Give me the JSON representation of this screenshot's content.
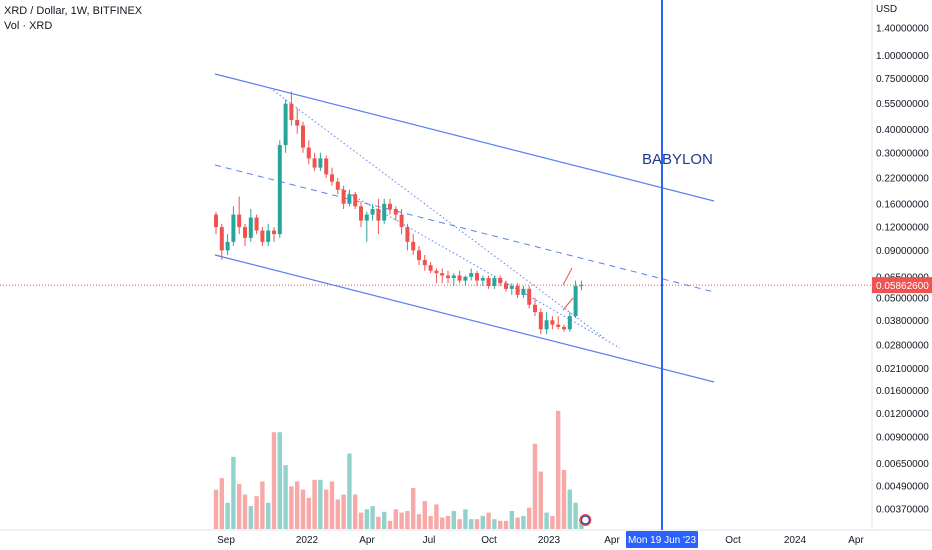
{
  "header": {
    "title": "XRD / Dollar, 1W, BITFINEX",
    "volume_label": "Vol · XRD"
  },
  "chart_data": {
    "type": "candlestick",
    "symbol": "XRD / Dollar",
    "interval": "1W",
    "exchange": "BITFINEX",
    "y_unit": "USD",
    "y_scale": "log",
    "ylim": [
      0.003,
      1.6
    ],
    "y_ticks": [
      "1.40000000",
      "1.00000000",
      "0.75000000",
      "0.55000000",
      "0.40000000",
      "0.30000000",
      "0.22000000",
      "0.16000000",
      "0.12000000",
      "0.09000000",
      "0.06500000",
      "0.05000000",
      "0.03800000",
      "0.02800000",
      "0.02100000",
      "0.01600000",
      "0.01200000",
      "0.00900000",
      "0.00650000",
      "0.00490000",
      "0.00370000"
    ],
    "x_ticks": [
      "Sep",
      "2022",
      "Apr",
      "Jul",
      "Oct",
      "2023",
      "Apr",
      "Oct",
      "2024",
      "Apr"
    ],
    "last_price": "0.05862600",
    "crosshair_date": "Mon 19 Jun '23",
    "annotation": "BABYLON",
    "candles_ohlc": [
      [
        0.14,
        0.145,
        0.11,
        0.12
      ],
      [
        0.12,
        0.125,
        0.08,
        0.09
      ],
      [
        0.09,
        0.11,
        0.085,
        0.1
      ],
      [
        0.1,
        0.155,
        0.095,
        0.14
      ],
      [
        0.14,
        0.175,
        0.11,
        0.12
      ],
      [
        0.12,
        0.125,
        0.095,
        0.105
      ],
      [
        0.105,
        0.15,
        0.1,
        0.135
      ],
      [
        0.135,
        0.14,
        0.11,
        0.115
      ],
      [
        0.115,
        0.12,
        0.095,
        0.1
      ],
      [
        0.1,
        0.125,
        0.095,
        0.115
      ],
      [
        0.115,
        0.12,
        0.1,
        0.11
      ],
      [
        0.11,
        0.35,
        0.105,
        0.33
      ],
      [
        0.33,
        0.58,
        0.3,
        0.55
      ],
      [
        0.55,
        0.64,
        0.42,
        0.45
      ],
      [
        0.45,
        0.52,
        0.38,
        0.42
      ],
      [
        0.42,
        0.44,
        0.3,
        0.32
      ],
      [
        0.32,
        0.35,
        0.26,
        0.28
      ],
      [
        0.28,
        0.3,
        0.24,
        0.25
      ],
      [
        0.25,
        0.3,
        0.24,
        0.28
      ],
      [
        0.28,
        0.29,
        0.22,
        0.23
      ],
      [
        0.23,
        0.25,
        0.2,
        0.21
      ],
      [
        0.21,
        0.22,
        0.18,
        0.19
      ],
      [
        0.19,
        0.2,
        0.15,
        0.16
      ],
      [
        0.16,
        0.19,
        0.155,
        0.18
      ],
      [
        0.18,
        0.185,
        0.15,
        0.155
      ],
      [
        0.155,
        0.165,
        0.12,
        0.13
      ],
      [
        0.13,
        0.145,
        0.1,
        0.14
      ],
      [
        0.14,
        0.16,
        0.13,
        0.15
      ],
      [
        0.15,
        0.17,
        0.11,
        0.13
      ],
      [
        0.13,
        0.17,
        0.125,
        0.16
      ],
      [
        0.16,
        0.17,
        0.14,
        0.15
      ],
      [
        0.15,
        0.155,
        0.13,
        0.14
      ],
      [
        0.14,
        0.15,
        0.11,
        0.12
      ],
      [
        0.12,
        0.125,
        0.09,
        0.1
      ],
      [
        0.1,
        0.11,
        0.085,
        0.09
      ],
      [
        0.09,
        0.095,
        0.075,
        0.08
      ],
      [
        0.08,
        0.085,
        0.07,
        0.075
      ],
      [
        0.075,
        0.078,
        0.068,
        0.07
      ],
      [
        0.07,
        0.072,
        0.06,
        0.068
      ],
      [
        0.068,
        0.072,
        0.06,
        0.066
      ],
      [
        0.066,
        0.07,
        0.06,
        0.064
      ],
      [
        0.064,
        0.068,
        0.058,
        0.066
      ],
      [
        0.066,
        0.07,
        0.06,
        0.062
      ],
      [
        0.062,
        0.066,
        0.058,
        0.065
      ],
      [
        0.065,
        0.072,
        0.062,
        0.068
      ],
      [
        0.068,
        0.07,
        0.058,
        0.062
      ],
      [
        0.062,
        0.066,
        0.058,
        0.064
      ],
      [
        0.064,
        0.066,
        0.056,
        0.058
      ],
      [
        0.058,
        0.066,
        0.056,
        0.064
      ],
      [
        0.064,
        0.066,
        0.058,
        0.06
      ],
      [
        0.06,
        0.062,
        0.054,
        0.056
      ],
      [
        0.056,
        0.06,
        0.052,
        0.058
      ],
      [
        0.058,
        0.06,
        0.05,
        0.052
      ],
      [
        0.052,
        0.058,
        0.05,
        0.056
      ],
      [
        0.056,
        0.058,
        0.044,
        0.046
      ],
      [
        0.046,
        0.05,
        0.04,
        0.042
      ],
      [
        0.042,
        0.044,
        0.032,
        0.034
      ],
      [
        0.034,
        0.042,
        0.032,
        0.038
      ],
      [
        0.038,
        0.04,
        0.034,
        0.036
      ],
      [
        0.036,
        0.04,
        0.034,
        0.035
      ],
      [
        0.035,
        0.036,
        0.033,
        0.034
      ],
      [
        0.034,
        0.042,
        0.033,
        0.04
      ],
      [
        0.04,
        0.062,
        0.039,
        0.058
      ],
      [
        0.058,
        0.062,
        0.055,
        0.0586
      ]
    ],
    "volume_values": [
      48,
      62,
      32,
      88,
      55,
      42,
      28,
      40,
      58,
      32,
      118,
      118,
      78,
      52,
      58,
      48,
      38,
      60,
      60,
      48,
      58,
      36,
      42,
      92,
      42,
      20,
      24,
      28,
      15,
      21,
      10,
      24,
      20,
      22,
      50,
      18,
      34,
      16,
      30,
      14,
      16,
      22,
      12,
      24,
      12,
      12,
      16,
      20,
      12,
      10,
      10,
      22,
      14,
      16,
      26,
      104,
      70,
      20,
      16,
      144,
      72,
      48,
      32,
      12
    ]
  }
}
